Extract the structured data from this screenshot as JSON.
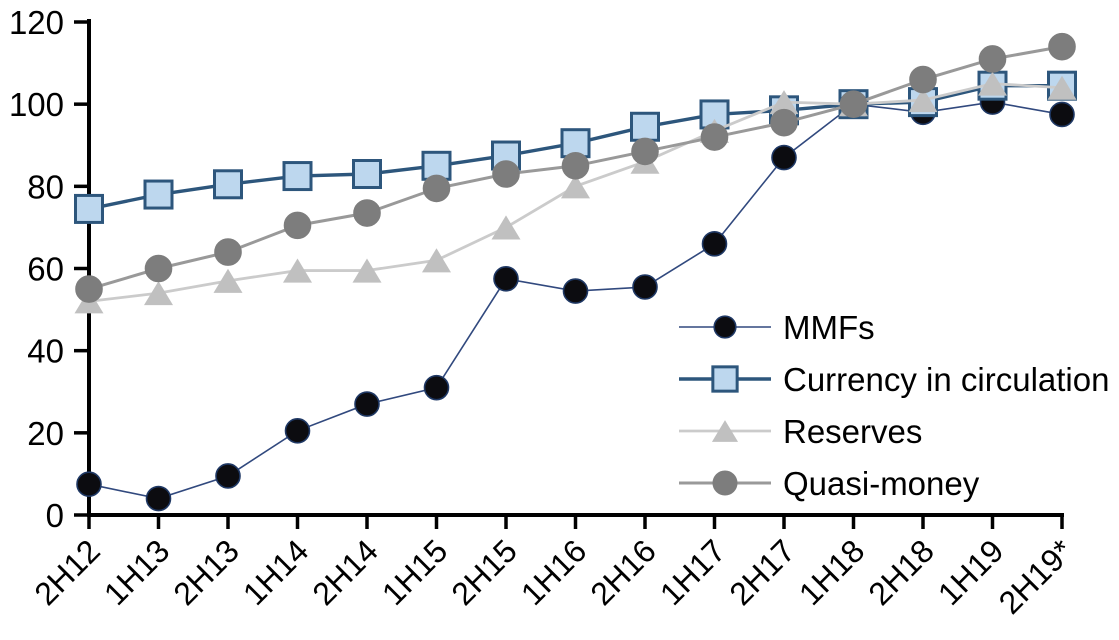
{
  "chart_data": {
    "type": "line",
    "title": "",
    "xlabel": "",
    "ylabel": "",
    "categories": [
      "2H12",
      "1H13",
      "2H13",
      "1H14",
      "2H14",
      "1H15",
      "2H15",
      "1H16",
      "2H16",
      "1H17",
      "2H17",
      "1H18",
      "2H18",
      "1H19",
      "2H19*"
    ],
    "series": [
      {
        "name": "MMFs",
        "marker": "circle",
        "marker_fill": "#0c0c10",
        "marker_border": "#1f3864",
        "line_color": "#31497e",
        "line_width": 1.6,
        "marker_size": 24,
        "values": [
          7.5,
          4,
          9.5,
          20.5,
          27,
          31,
          57.5,
          54.5,
          55.5,
          66,
          87,
          100,
          98,
          100.5,
          97.5
        ]
      },
      {
        "name": "Currency in circulation",
        "marker": "square",
        "marker_fill": "#bdd7ee",
        "marker_border": "#2d567c",
        "line_color": "#2d567c",
        "line_width": 3.4,
        "marker_size": 27,
        "values": [
          74.5,
          78,
          80.5,
          82.5,
          83,
          85,
          87.5,
          90.5,
          94.5,
          97.5,
          98.5,
          100,
          100.5,
          104.5,
          104.5
        ]
      },
      {
        "name": "Reserves",
        "marker": "triangle",
        "marker_fill": "#c0c0c0",
        "marker_border": "#c0c0c0",
        "line_color": "#cbcbcb",
        "line_width": 2.8,
        "marker_size": 29,
        "values": [
          52,
          54,
          57,
          59.5,
          59.5,
          62,
          70,
          80,
          86,
          93.5,
          100.5,
          100,
          101,
          105,
          104
        ]
      },
      {
        "name": "Quasi-money",
        "marker": "circle",
        "marker_fill": "#7d7d7d",
        "marker_border": "#7d7d7d",
        "line_color": "#999999",
        "line_width": 3,
        "marker_size": 26,
        "values": [
          55,
          60,
          64,
          70.5,
          73.5,
          79.5,
          83,
          85,
          88.5,
          92,
          95.5,
          100,
          106,
          111,
          114
        ]
      }
    ],
    "ylim": [
      0,
      120
    ],
    "yticks": [
      0,
      20,
      40,
      60,
      80,
      100,
      120
    ],
    "x_tick_rotation_deg": 45,
    "grid": false,
    "legend_position": "inside-right",
    "axis_color": "#000000",
    "text_color": "#000000",
    "background": "#ffffff"
  }
}
